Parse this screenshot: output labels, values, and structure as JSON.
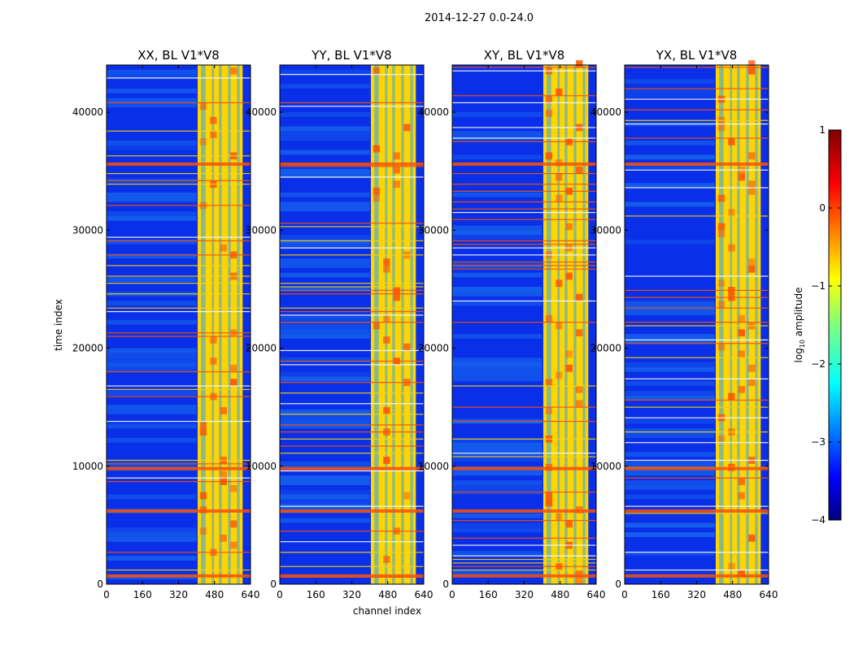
{
  "figure": {
    "suptitle": "2014-12-27 0.0-24.0",
    "xlabel": "channel index",
    "ylabel": "time index",
    "colorbar_label_prefix": "log",
    "colorbar_label_sub": "10",
    "colorbar_label_suffix": " amplitude"
  },
  "chart_data": [
    {
      "type": "heatmap",
      "title": "XX, BL V1*V8",
      "xlabel": "",
      "ylabel": "time index",
      "xlim": [
        0,
        640
      ],
      "ylim": [
        0,
        44000
      ],
      "xticks": [
        0,
        160,
        320,
        480,
        640
      ],
      "yticks": [
        0,
        10000,
        20000,
        30000,
        40000
      ],
      "bright_channel_range": [
        405,
        605
      ],
      "description_values": "log10 amplitude, mostly -3 to -2.5 off-band, -1 to 0 in band"
    },
    {
      "type": "heatmap",
      "title": "YY, BL V1*V8",
      "xlabel": "channel index",
      "ylabel": "",
      "xlim": [
        0,
        640
      ],
      "ylim": [
        0,
        44000
      ],
      "xticks": [
        0,
        160,
        320,
        480,
        640
      ],
      "yticks": [
        0,
        10000,
        20000,
        30000,
        40000
      ],
      "bright_channel_range": [
        405,
        605
      ]
    },
    {
      "type": "heatmap",
      "title": "XY, BL V1*V8",
      "xlabel": "",
      "ylabel": "",
      "xlim": [
        0,
        640
      ],
      "ylim": [
        0,
        44000
      ],
      "xticks": [
        0,
        160,
        320,
        480,
        640
      ],
      "yticks": [
        0,
        10000,
        20000,
        30000,
        40000
      ],
      "bright_channel_range": [
        405,
        605
      ]
    },
    {
      "type": "heatmap",
      "title": "YX, BL V1*V8",
      "xlabel": "",
      "ylabel": "",
      "xlim": [
        0,
        640
      ],
      "ylim": [
        0,
        44000
      ],
      "xticks": [
        0,
        160,
        320,
        480,
        640
      ],
      "yticks": [
        0,
        10000,
        20000,
        30000,
        40000
      ],
      "bright_channel_range": [
        405,
        605
      ]
    }
  ],
  "colorbar": {
    "range": [
      -4,
      1
    ],
    "ticks": [
      1,
      0,
      -1,
      -2,
      -3,
      -4
    ],
    "tick_labels": [
      "1",
      "0",
      "−1",
      "−2",
      "−3",
      "−4"
    ],
    "colormap": "jet"
  },
  "colors": {
    "low": "#0a2fe8",
    "mid": "#25a4f5",
    "band": "#ffd400",
    "high": "#ff5000"
  }
}
